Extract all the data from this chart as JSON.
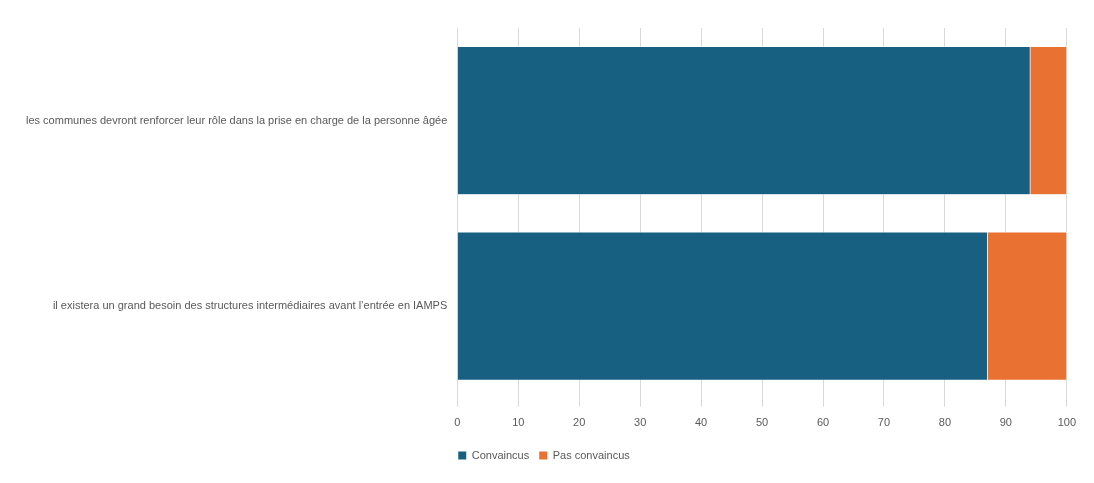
{
  "chart_data": {
    "type": "bar",
    "orientation": "horizontal",
    "stacked": true,
    "categories": [
      "les communes devront renforcer leur rôle dans la prise en charge de la personne âgée",
      "il existera un grand besoin des structures intermédiaires avant l’entrée en IAMPS"
    ],
    "series": [
      {
        "name": "Convaincus",
        "color": "#176082",
        "values": [
          94,
          87
        ]
      },
      {
        "name": "Pas convaincus",
        "color": "#e97132",
        "values": [
          6,
          13
        ]
      }
    ],
    "xlim": [
      0,
      100
    ],
    "xticks": [
      0,
      10,
      20,
      30,
      40,
      50,
      60,
      70,
      80,
      90,
      100
    ],
    "grid": "x",
    "legend": "bottom"
  }
}
